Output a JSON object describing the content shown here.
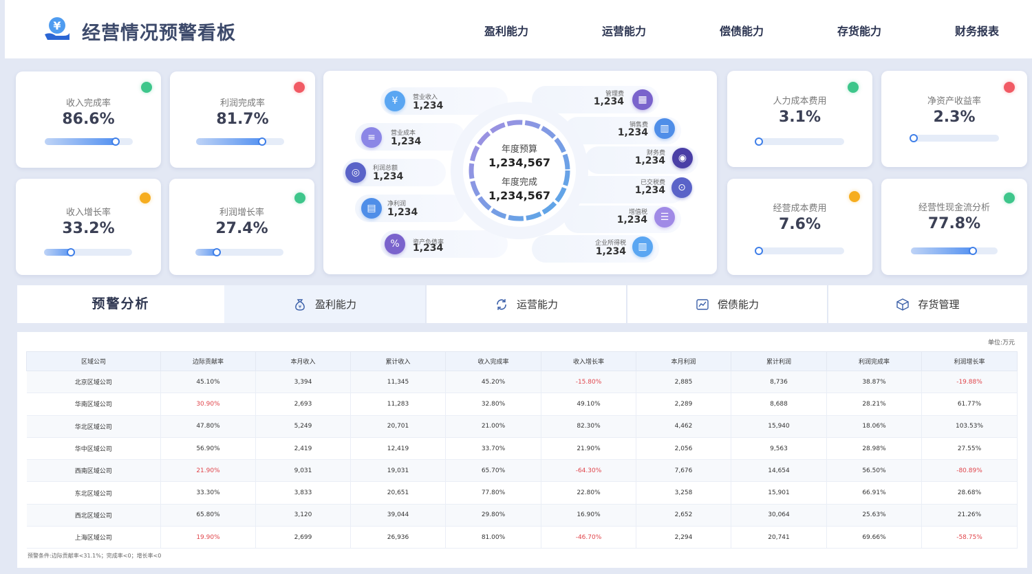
{
  "header": {
    "title": "经营情况预警看板",
    "nav": [
      "盈利能力",
      "运营能力",
      "偿债能力",
      "存货能力",
      "财务报表"
    ]
  },
  "kpis": [
    {
      "label": "收入完成率",
      "value": "86.6%",
      "status": "green",
      "progress": 0.85
    },
    {
      "label": "利润完成率",
      "value": "81.7%",
      "status": "red",
      "progress": 0.8
    },
    {
      "label": "收入增长率",
      "value": "33.2%",
      "status": "orange",
      "progress": 0.35
    },
    {
      "label": "利润增长率",
      "value": "27.4%",
      "status": "green",
      "progress": 0.29
    },
    {
      "label": "人力成本费用",
      "value": "3.1%",
      "status": "green",
      "progress": 0.03
    },
    {
      "label": "净资产收益率",
      "value": "2.3%",
      "status": "red",
      "progress": 0.02
    },
    {
      "label": "经营成本费用",
      "value": "7.6%",
      "status": "orange",
      "progress": 0.07
    },
    {
      "label": "经营性现金流分析",
      "value": "77.8%",
      "status": "green",
      "progress": 0.76
    }
  ],
  "status_colors": {
    "green": "#3ec68b",
    "red": "#f15a64",
    "orange": "#f6ad1f"
  },
  "center": {
    "budget_label": "年度预算",
    "budget_value": "1,234,567",
    "actual_label": "年度完成",
    "actual_value": "1,234,567",
    "left_items": [
      {
        "label": "营业收入",
        "value": "1,234",
        "icon": "money-bag-icon",
        "color": "#5aa6f2"
      },
      {
        "label": "营业成本",
        "value": "1,234",
        "icon": "document-icon",
        "color": "#8b86e6"
      },
      {
        "label": "利润总额",
        "value": "1,234",
        "icon": "coins-icon",
        "color": "#5a63c8"
      },
      {
        "label": "净利润",
        "value": "1,234",
        "icon": "chart-icon",
        "color": "#4f8ee8"
      },
      {
        "label": "资产负债率",
        "value": "1,234",
        "icon": "ratio-icon",
        "color": "#7a63cc"
      }
    ],
    "right_items": [
      {
        "label": "管理费",
        "value": "1,234",
        "icon": "calendar-icon",
        "color": "#7a63cc"
      },
      {
        "label": "销售费",
        "value": "1,234",
        "icon": "bar-chart-icon",
        "color": "#4f8ee8"
      },
      {
        "label": "财务费",
        "value": "1,234",
        "icon": "safe-icon",
        "color": "#4a3fa6"
      },
      {
        "label": "已交税费",
        "value": "1,234",
        "icon": "search-money-icon",
        "color": "#5a63c8"
      },
      {
        "label": "增值税",
        "value": "1,234",
        "icon": "stack-icon",
        "color": "#a08ae6"
      },
      {
        "label": "企业所得税",
        "value": "1,234",
        "icon": "building-icon",
        "color": "#5aa6f2"
      }
    ]
  },
  "tabs": {
    "title": "预警分析",
    "items": [
      {
        "label": "盈利能力",
        "icon": "money-bag-icon"
      },
      {
        "label": "运营能力",
        "icon": "cycle-icon"
      },
      {
        "label": "偿债能力",
        "icon": "trend-icon"
      },
      {
        "label": "存货管理",
        "icon": "box-icon"
      }
    ]
  },
  "table": {
    "unit": "单位:万元",
    "columns": [
      "区域公司",
      "边际贡献率",
      "本月收入",
      "累计收入",
      "收入完成率",
      "收入增长率",
      "本月利润",
      "累计利润",
      "利润完成率",
      "利润增长率"
    ],
    "rows": [
      [
        "北京区域公司",
        "45.10%",
        "3,394",
        "11,345",
        "45.20%",
        "-15.80%",
        "2,885",
        "8,736",
        "38.87%",
        "-19.88%"
      ],
      [
        "华南区域公司",
        "30.90%",
        "2,693",
        "11,283",
        "32.80%",
        "49.10%",
        "2,289",
        "8,688",
        "28.21%",
        "61.77%"
      ],
      [
        "华北区域公司",
        "47.80%",
        "5,249",
        "20,701",
        "21.00%",
        "82.30%",
        "4,462",
        "15,940",
        "18.06%",
        "103.53%"
      ],
      [
        "华中区域公司",
        "56.90%",
        "2,419",
        "12,419",
        "33.70%",
        "21.90%",
        "2,056",
        "9,563",
        "28.98%",
        "27.55%"
      ],
      [
        "西南区域公司",
        "21.90%",
        "9,031",
        "19,031",
        "65.70%",
        "-64.30%",
        "7,676",
        "14,654",
        "56.50%",
        "-80.89%"
      ],
      [
        "东北区域公司",
        "33.30%",
        "3,833",
        "20,651",
        "77.80%",
        "22.80%",
        "3,258",
        "15,901",
        "66.91%",
        "28.68%"
      ],
      [
        "西北区域公司",
        "65.80%",
        "3,120",
        "39,044",
        "29.80%",
        "16.90%",
        "2,652",
        "30,064",
        "25.63%",
        "21.26%"
      ],
      [
        "上海区域公司",
        "19.90%",
        "2,699",
        "26,936",
        "81.00%",
        "-46.70%",
        "2,294",
        "20,741",
        "69.66%",
        "-58.75%"
      ]
    ],
    "footnote": "预警条件:边际贡献率<31.1%；完成率<0；增长率<0"
  }
}
